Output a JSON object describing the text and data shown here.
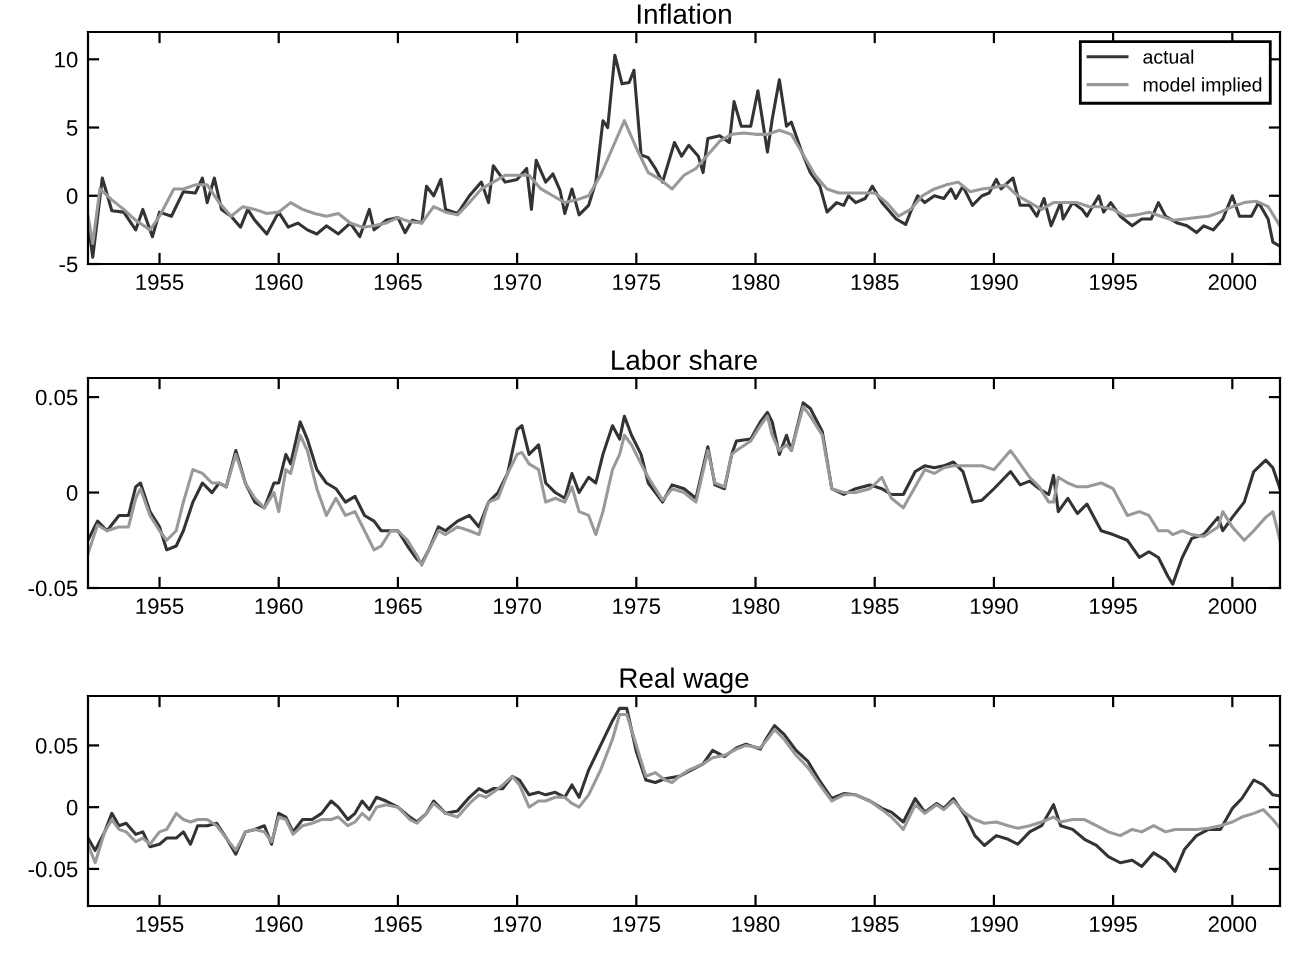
{
  "chart_data": [
    {
      "type": "line",
      "title": "Inflation",
      "xlim": [
        1952,
        2002
      ],
      "xticks": [
        1955,
        1960,
        1965,
        1970,
        1975,
        1980,
        1985,
        1990,
        1995,
        2000
      ],
      "ylim": [
        -5,
        12
      ],
      "yticks": [
        -5,
        0,
        5,
        10
      ],
      "legend": "top right",
      "grid": false,
      "series": [
        {
          "name": "actual",
          "color": "#333333",
          "x": [
            1952.0,
            1952.2,
            1952.6,
            1953.0,
            1953.5,
            1954.0,
            1954.3,
            1954.7,
            1955.0,
            1955.5,
            1956.0,
            1956.5,
            1956.8,
            1957.0,
            1957.3,
            1957.6,
            1958.0,
            1958.4,
            1958.7,
            1959.0,
            1959.5,
            1960.0,
            1960.4,
            1960.8,
            1961.2,
            1961.6,
            1962.0,
            1962.5,
            1963.0,
            1963.4,
            1963.8,
            1964.0,
            1964.5,
            1965.0,
            1965.3,
            1965.6,
            1966.0,
            1966.2,
            1966.5,
            1966.8,
            1967.0,
            1967.5,
            1968.0,
            1968.5,
            1968.8,
            1969.0,
            1969.5,
            1970.0,
            1970.4,
            1970.6,
            1970.8,
            1971.2,
            1971.5,
            1971.8,
            1972.0,
            1972.3,
            1972.6,
            1973.0,
            1973.3,
            1973.6,
            1973.8,
            1974.1,
            1974.4,
            1974.7,
            1974.9,
            1975.2,
            1975.5,
            1975.8,
            1976.1,
            1976.6,
            1976.9,
            1977.2,
            1977.6,
            1977.8,
            1978.0,
            1978.5,
            1978.9,
            1979.1,
            1979.4,
            1979.8,
            1980.1,
            1980.5,
            1980.7,
            1981.0,
            1981.3,
            1981.5,
            1981.9,
            1982.3,
            1982.7,
            1983.0,
            1983.4,
            1983.7,
            1983.9,
            1984.2,
            1984.6,
            1984.9,
            1985.3,
            1985.9,
            1986.3,
            1986.5,
            1986.8,
            1987.1,
            1987.5,
            1987.9,
            1988.2,
            1988.4,
            1988.7,
            1989.1,
            1989.5,
            1989.8,
            1990.1,
            1990.3,
            1990.6,
            1990.8,
            1991.1,
            1991.5,
            1991.8,
            1992.1,
            1992.4,
            1992.8,
            1992.9,
            1993.3,
            1993.7,
            1993.9,
            1994.4,
            1994.6,
            1994.9,
            1995.3,
            1995.8,
            1996.2,
            1996.6,
            1996.9,
            1997.2,
            1997.7,
            1998.1,
            1998.5,
            1998.8,
            1999.2,
            1999.6,
            2000.0,
            2000.3,
            2000.8,
            2001.1,
            2001.5,
            2001.7,
            2002.0
          ],
          "values": [
            -2,
            -4.5,
            1.3,
            -1.1,
            -1.2,
            -2.5,
            -1,
            -3,
            -1.2,
            -1.5,
            0.3,
            0.2,
            1.3,
            -0.5,
            1.3,
            -1,
            -1.5,
            -2.3,
            -1,
            -1.8,
            -2.8,
            -1.2,
            -2.3,
            -2,
            -2.5,
            -2.8,
            -2.2,
            -2.8,
            -2,
            -3,
            -1,
            -2.5,
            -1.8,
            -1.6,
            -2.7,
            -1.8,
            -2,
            0.7,
            0,
            1.2,
            -1,
            -1.3,
            0,
            1,
            -0.5,
            2.2,
            1,
            1.2,
            2,
            -1,
            2.6,
            1,
            1.6,
            0.4,
            -1.3,
            0.5,
            -1.4,
            -0.7,
            1,
            5.5,
            5,
            10.3,
            8.2,
            8.3,
            9.2,
            3,
            2.8,
            2,
            1,
            3.9,
            2.9,
            3.7,
            2.9,
            1.7,
            4.2,
            4.4,
            3.9,
            6.9,
            5.1,
            5.1,
            7.7,
            3.2,
            5.6,
            8.5,
            5.1,
            5.4,
            3.4,
            1.7,
            0.7,
            -1.2,
            -0.5,
            -0.7,
            0,
            -0.5,
            -0.2,
            0.7,
            -0.5,
            -1.7,
            -2.1,
            -1.2,
            0,
            -0.5,
            0,
            -0.2,
            0.5,
            -0.2,
            0.7,
            -0.7,
            0,
            0.2,
            1.2,
            0.5,
            1,
            1.3,
            -0.7,
            -0.7,
            -1.5,
            -0.2,
            -2.2,
            -0.5,
            -1.7,
            -0.5,
            -1,
            -1.5,
            0,
            -1.2,
            -0.5,
            -1.5,
            -2.2,
            -1.7,
            -1.7,
            -0.5,
            -1.5,
            -2,
            -2.2,
            -2.7,
            -2.2,
            -2.5,
            -1.7,
            0,
            -1.5,
            -1.5,
            -0.5,
            -1.7,
            -3.4,
            -3.7
          ]
        },
        {
          "name": "model implied",
          "color": "#999999",
          "x": [
            1952.0,
            1952.2,
            1952.5,
            1953.0,
            1953.5,
            1954.0,
            1954.6,
            1955.0,
            1955.6,
            1956.0,
            1956.5,
            1957.0,
            1957.5,
            1958.0,
            1958.5,
            1959.0,
            1959.5,
            1960.0,
            1960.5,
            1961.0,
            1961.5,
            1962.0,
            1962.5,
            1963.0,
            1963.5,
            1964.0,
            1964.5,
            1965.0,
            1965.5,
            1966.0,
            1966.5,
            1967.0,
            1967.5,
            1968.0,
            1968.5,
            1969.0,
            1969.5,
            1970.0,
            1970.5,
            1971.0,
            1971.5,
            1972.0,
            1972.5,
            1973.0,
            1973.5,
            1974.0,
            1974.5,
            1975.0,
            1975.5,
            1976.0,
            1976.5,
            1977.0,
            1977.5,
            1978.0,
            1978.5,
            1979.0,
            1979.5,
            1980.0,
            1980.5,
            1981.0,
            1981.5,
            1982.0,
            1982.5,
            1983.0,
            1983.5,
            1984.0,
            1984.5,
            1985.0,
            1985.5,
            1986.0,
            1986.5,
            1987.0,
            1987.5,
            1988.0,
            1988.5,
            1989.0,
            1989.5,
            1990.0,
            1990.5,
            1991.0,
            1991.5,
            1992.0,
            1992.5,
            1993.0,
            1993.5,
            1994.0,
            1994.5,
            1995.0,
            1995.5,
            1996.0,
            1996.5,
            1997.0,
            1997.5,
            1998.0,
            1998.5,
            1999.0,
            1999.5,
            2000.0,
            2000.5,
            2001.0,
            2001.5,
            2002.0
          ],
          "values": [
            -1.5,
            -3.5,
            0.5,
            -0.3,
            -1,
            -1.8,
            -2.5,
            -1.5,
            0.5,
            0.5,
            0.8,
            0.8,
            -0.5,
            -1.5,
            -0.8,
            -1,
            -1.3,
            -1.2,
            -0.5,
            -1,
            -1.3,
            -1.5,
            -1.3,
            -2,
            -2.3,
            -2.2,
            -2,
            -1.6,
            -1.9,
            -2,
            -0.8,
            -1.2,
            -1.4,
            -0.5,
            0.5,
            1,
            1.5,
            1.5,
            1.5,
            0.5,
            0,
            -0.5,
            -0.3,
            0,
            1.5,
            3.5,
            5.5,
            3.5,
            1.7,
            1.2,
            0.5,
            1.5,
            2,
            3,
            4,
            4.5,
            4.6,
            4.5,
            4.5,
            4.8,
            4.5,
            3,
            1.5,
            0.5,
            0.2,
            0.2,
            0.2,
            0.2,
            -0.5,
            -1.5,
            -1,
            0,
            0.5,
            0.8,
            1,
            0.3,
            0.5,
            0.6,
            0.8,
            0,
            -0.5,
            -1,
            -0.5,
            -0.5,
            -0.5,
            -0.8,
            -0.8,
            -1,
            -1.5,
            -1.4,
            -1.2,
            -1.5,
            -1.8,
            -1.7,
            -1.6,
            -1.5,
            -1.2,
            -0.8,
            -0.5,
            -0.4,
            -0.8,
            -2.2
          ]
        }
      ]
    },
    {
      "type": "line",
      "title": "Labor share",
      "xlim": [
        1952,
        2002
      ],
      "xticks": [
        1955,
        1960,
        1965,
        1970,
        1975,
        1980,
        1985,
        1990,
        1995,
        2000
      ],
      "ylim": [
        -0.05,
        0.06
      ],
      "yticks": [
        -0.05,
        0,
        0.05
      ],
      "grid": false,
      "series": [
        {
          "color": "#333333",
          "x": [
            1952.0,
            1952.4,
            1952.8,
            1953.3,
            1953.7,
            1954.0,
            1954.2,
            1954.6,
            1955.0,
            1955.3,
            1955.7,
            1956.0,
            1956.4,
            1956.8,
            1957.2,
            1957.5,
            1957.8,
            1958.2,
            1958.6,
            1959.0,
            1959.4,
            1959.8,
            1960.0,
            1960.3,
            1960.5,
            1960.9,
            1961.2,
            1961.6,
            1962.0,
            1962.4,
            1962.8,
            1963.2,
            1963.6,
            1964.0,
            1964.3,
            1964.7,
            1965.0,
            1965.4,
            1965.8,
            1966.0,
            1966.3,
            1966.7,
            1967.0,
            1967.5,
            1968.0,
            1968.4,
            1968.8,
            1969.2,
            1969.6,
            1970.0,
            1970.2,
            1970.5,
            1970.9,
            1971.2,
            1971.6,
            1972.0,
            1972.3,
            1972.6,
            1973.0,
            1973.3,
            1973.6,
            1974.0,
            1974.3,
            1974.5,
            1974.8,
            1975.2,
            1975.5,
            1976.1,
            1976.5,
            1977.0,
            1977.5,
            1978.0,
            1978.3,
            1978.7,
            1979.0,
            1979.2,
            1979.8,
            1980.2,
            1980.5,
            1980.7,
            1981.0,
            1981.3,
            1981.5,
            1982.0,
            1982.3,
            1982.8,
            1983.2,
            1983.7,
            1984.2,
            1984.8,
            1985.3,
            1985.7,
            1986.2,
            1986.7,
            1987.1,
            1987.5,
            1987.9,
            1988.3,
            1988.7,
            1989.1,
            1989.5,
            1990.0,
            1990.7,
            1991.1,
            1991.5,
            1991.9,
            1992.3,
            1992.5,
            1992.7,
            1993.1,
            1993.5,
            1993.9,
            1994.5,
            1995.0,
            1995.6,
            1996.1,
            1996.5,
            1996.9,
            1997.3,
            1997.5,
            1997.9,
            1998.3,
            1998.8,
            1999.4,
            1999.6,
            2000.0,
            2000.5,
            2000.9,
            2001.4,
            2001.7,
            2002.0
          ],
          "values": [
            -0.025,
            -0.015,
            -0.02,
            -0.012,
            -0.012,
            0.003,
            0.005,
            -0.01,
            -0.018,
            -0.03,
            -0.028,
            -0.02,
            -0.005,
            0.005,
            0,
            0.005,
            0.003,
            0.022,
            0.005,
            -0.005,
            -0.008,
            0.005,
            0.005,
            0.02,
            0.015,
            0.037,
            0.028,
            0.012,
            0.005,
            0.002,
            -0.005,
            -0.002,
            -0.012,
            -0.015,
            -0.02,
            -0.02,
            -0.02,
            -0.028,
            -0.035,
            -0.037,
            -0.03,
            -0.018,
            -0.02,
            -0.015,
            -0.012,
            -0.018,
            -0.005,
            0,
            0.01,
            0.033,
            0.035,
            0.02,
            0.025,
            0.005,
            0,
            -0.003,
            0.01,
            0,
            0.008,
            0.005,
            0.02,
            0.035,
            0.028,
            0.04,
            0.03,
            0.02,
            0.005,
            -0.005,
            0.004,
            0.002,
            -0.003,
            0.024,
            0.004,
            0.002,
            0.02,
            0.027,
            0.028,
            0.037,
            0.042,
            0.037,
            0.02,
            0.03,
            0.022,
            0.047,
            0.044,
            0.032,
            0.002,
            -0.001,
            0.002,
            0.004,
            0.002,
            -0.001,
            -0.001,
            0.011,
            0.014,
            0.013,
            0.014,
            0.016,
            0.011,
            -0.005,
            -0.004,
            0.002,
            0.011,
            0.004,
            0.006,
            0.002,
            -0.001,
            0.009,
            -0.01,
            -0.003,
            -0.011,
            -0.006,
            -0.02,
            -0.022,
            -0.025,
            -0.034,
            -0.031,
            -0.034,
            -0.044,
            -0.048,
            -0.034,
            -0.024,
            -0.022,
            -0.013,
            -0.02,
            -0.013,
            -0.005,
            0.011,
            0.017,
            0.013,
            0.002
          ]
        },
        {
          "color": "#999999",
          "x": [
            1952.0,
            1952.4,
            1952.8,
            1953.3,
            1953.7,
            1954.0,
            1954.2,
            1954.6,
            1955.0,
            1955.3,
            1955.7,
            1956.0,
            1956.4,
            1956.8,
            1957.2,
            1957.5,
            1957.8,
            1958.2,
            1958.6,
            1959.0,
            1959.4,
            1959.8,
            1960.0,
            1960.3,
            1960.5,
            1960.9,
            1961.2,
            1961.6,
            1962.0,
            1962.4,
            1962.8,
            1963.2,
            1963.6,
            1964.0,
            1964.3,
            1964.7,
            1965.0,
            1965.4,
            1965.8,
            1966.0,
            1966.3,
            1966.7,
            1967.0,
            1967.5,
            1968.0,
            1968.4,
            1968.8,
            1969.2,
            1969.6,
            1970.0,
            1970.2,
            1970.5,
            1970.9,
            1971.2,
            1971.6,
            1972.0,
            1972.3,
            1972.6,
            1973.0,
            1973.3,
            1973.6,
            1974.0,
            1974.3,
            1974.5,
            1974.8,
            1975.2,
            1975.5,
            1976.1,
            1976.5,
            1977.0,
            1977.5,
            1978.0,
            1978.3,
            1978.7,
            1979.0,
            1979.2,
            1979.8,
            1980.2,
            1980.5,
            1980.7,
            1981.0,
            1981.3,
            1981.5,
            1982.0,
            1982.3,
            1982.8,
            1983.2,
            1983.7,
            1984.2,
            1984.8,
            1985.3,
            1985.7,
            1986.2,
            1986.7,
            1987.1,
            1987.5,
            1987.9,
            1988.3,
            1988.7,
            1989.1,
            1989.5,
            1990.0,
            1990.7,
            1991.1,
            1991.5,
            1991.9,
            1992.3,
            1992.5,
            1992.7,
            1993.1,
            1993.5,
            1993.9,
            1994.5,
            1995.0,
            1995.6,
            1996.1,
            1996.5,
            1996.9,
            1997.3,
            1997.5,
            1997.9,
            1998.3,
            1998.8,
            1999.4,
            1999.6,
            2000.0,
            2000.5,
            2000.9,
            2001.4,
            2001.7,
            2002.0
          ],
          "values": [
            -0.032,
            -0.017,
            -0.02,
            -0.018,
            -0.018,
            -0.003,
            0.002,
            -0.012,
            -0.02,
            -0.025,
            -0.02,
            -0.005,
            0.012,
            0.01,
            0.005,
            0.005,
            0.003,
            0.02,
            0.005,
            -0.003,
            -0.008,
            0,
            -0.01,
            0.012,
            0.01,
            0.03,
            0.022,
            0.002,
            -0.012,
            -0.003,
            -0.012,
            -0.01,
            -0.02,
            -0.03,
            -0.028,
            -0.02,
            -0.02,
            -0.025,
            -0.033,
            -0.038,
            -0.03,
            -0.02,
            -0.022,
            -0.018,
            -0.02,
            -0.022,
            -0.005,
            -0.003,
            0.01,
            0.02,
            0.021,
            0.015,
            0.012,
            -0.005,
            -0.003,
            -0.005,
            0.003,
            -0.01,
            -0.012,
            -0.022,
            -0.01,
            0.012,
            0.02,
            0.03,
            0.025,
            0.015,
            0.008,
            -0.004,
            0.002,
            0,
            -0.005,
            0.022,
            0.005,
            0.003,
            0.02,
            0.022,
            0.027,
            0.035,
            0.04,
            0.03,
            0.022,
            0.025,
            0.022,
            0.045,
            0.04,
            0.03,
            0.002,
            0,
            0,
            0.002,
            0.008,
            -0.003,
            -0.008,
            0.003,
            0.012,
            0.01,
            0.013,
            0.014,
            0.014,
            0.014,
            0.014,
            0.012,
            0.022,
            0.015,
            0.008,
            0.003,
            -0.005,
            -0.005,
            0.008,
            0.005,
            0.003,
            0.003,
            0.005,
            0.002,
            -0.012,
            -0.01,
            -0.012,
            -0.02,
            -0.02,
            -0.022,
            -0.02,
            -0.022,
            -0.023,
            -0.018,
            -0.01,
            -0.018,
            -0.025,
            -0.02,
            -0.013,
            -0.01,
            -0.025
          ]
        }
      ]
    },
    {
      "type": "line",
      "title": "Real wage",
      "xlim": [
        1952,
        2002
      ],
      "xticks": [
        1955,
        1960,
        1965,
        1970,
        1975,
        1980,
        1985,
        1990,
        1995,
        2000
      ],
      "ylim": [
        -0.08,
        0.09
      ],
      "yticks": [
        -0.05,
        0,
        0.05
      ],
      "grid": false,
      "series": [
        {
          "color": "#333333",
          "x": [
            1952.0,
            1952.3,
            1952.7,
            1953.0,
            1953.3,
            1953.6,
            1954.0,
            1954.3,
            1954.6,
            1955.0,
            1955.3,
            1955.7,
            1956.0,
            1956.3,
            1956.6,
            1957.0,
            1957.4,
            1957.8,
            1958.2,
            1958.6,
            1959.0,
            1959.4,
            1959.7,
            1960.0,
            1960.3,
            1960.6,
            1961.0,
            1961.4,
            1961.8,
            1962.2,
            1962.5,
            1962.9,
            1963.2,
            1963.5,
            1963.8,
            1964.1,
            1964.5,
            1965.0,
            1965.5,
            1965.8,
            1966.2,
            1966.5,
            1967.0,
            1967.5,
            1968.0,
            1968.4,
            1968.7,
            1969.0,
            1969.4,
            1969.8,
            1970.1,
            1970.5,
            1970.9,
            1971.2,
            1971.6,
            1972.0,
            1972.3,
            1972.6,
            1973.0,
            1973.5,
            1974.0,
            1974.3,
            1974.6,
            1975.0,
            1975.4,
            1975.8,
            1976.2,
            1976.5,
            1976.8,
            1977.2,
            1977.8,
            1978.2,
            1978.7,
            1979.2,
            1979.6,
            1980.2,
            1980.5,
            1980.8,
            1981.2,
            1981.7,
            1982.2,
            1982.7,
            1983.2,
            1983.7,
            1984.2,
            1984.8,
            1985.3,
            1985.7,
            1986.2,
            1986.7,
            1987.1,
            1987.6,
            1987.9,
            1988.3,
            1988.8,
            1989.2,
            1989.6,
            1990.1,
            1990.6,
            1991.0,
            1991.5,
            1992.0,
            1992.5,
            1992.8,
            1993.3,
            1993.8,
            1994.3,
            1994.8,
            1995.3,
            1995.8,
            1996.2,
            1996.7,
            1997.2,
            1997.6,
            1998.0,
            1998.5,
            1999.0,
            1999.5,
            2000.0,
            2000.4,
            2000.9,
            2001.3,
            2001.7,
            2002.0
          ],
          "values": [
            -0.025,
            -0.035,
            -0.02,
            -0.005,
            -0.015,
            -0.013,
            -0.022,
            -0.02,
            -0.032,
            -0.03,
            -0.025,
            -0.025,
            -0.02,
            -0.03,
            -0.015,
            -0.015,
            -0.013,
            -0.025,
            -0.038,
            -0.02,
            -0.018,
            -0.015,
            -0.03,
            -0.005,
            -0.008,
            -0.02,
            -0.01,
            -0.01,
            -0.005,
            0.005,
            0,
            -0.01,
            -0.005,
            0.005,
            -0.002,
            0.008,
            0.005,
            0,
            -0.008,
            -0.012,
            -0.005,
            0.005,
            -0.005,
            -0.003,
            0.008,
            0.015,
            0.012,
            0.015,
            0.015,
            0.025,
            0.022,
            0.01,
            0.012,
            0.01,
            0.012,
            0.008,
            0.018,
            0.008,
            0.03,
            0.05,
            0.07,
            0.08,
            0.08,
            0.045,
            0.022,
            0.02,
            0.023,
            0.024,
            0.025,
            0.029,
            0.035,
            0.046,
            0.041,
            0.048,
            0.051,
            0.047,
            0.057,
            0.066,
            0.059,
            0.046,
            0.037,
            0.021,
            0.007,
            0.011,
            0.01,
            0.005,
            -0.001,
            -0.004,
            -0.012,
            0.007,
            -0.004,
            0.003,
            -0.001,
            0.007,
            -0.007,
            -0.023,
            -0.031,
            -0.023,
            -0.026,
            -0.03,
            -0.02,
            -0.015,
            0.002,
            -0.015,
            -0.018,
            -0.026,
            -0.031,
            -0.04,
            -0.045,
            -0.043,
            -0.048,
            -0.037,
            -0.043,
            -0.052,
            -0.034,
            -0.023,
            -0.018,
            -0.018,
            -0.001,
            0.007,
            0.022,
            0.018,
            0.01,
            0.009
          ]
        },
        {
          "color": "#999999",
          "x": [
            1952.0,
            1952.3,
            1952.7,
            1953.0,
            1953.3,
            1953.6,
            1954.0,
            1954.3,
            1954.6,
            1955.0,
            1955.3,
            1955.7,
            1956.0,
            1956.3,
            1956.6,
            1957.0,
            1957.4,
            1957.8,
            1958.2,
            1958.6,
            1959.0,
            1959.4,
            1959.7,
            1960.0,
            1960.3,
            1960.6,
            1961.0,
            1961.4,
            1961.8,
            1962.2,
            1962.5,
            1962.9,
            1963.2,
            1963.5,
            1963.8,
            1964.1,
            1964.5,
            1965.0,
            1965.5,
            1965.8,
            1966.2,
            1966.5,
            1967.0,
            1967.5,
            1968.0,
            1968.4,
            1968.7,
            1969.0,
            1969.4,
            1969.8,
            1970.1,
            1970.5,
            1970.9,
            1971.2,
            1971.6,
            1972.0,
            1972.3,
            1972.6,
            1973.0,
            1973.5,
            1974.0,
            1974.3,
            1974.6,
            1975.0,
            1975.4,
            1975.8,
            1976.2,
            1976.5,
            1976.8,
            1977.2,
            1977.8,
            1978.2,
            1978.7,
            1979.2,
            1979.6,
            1980.2,
            1980.5,
            1980.8,
            1981.2,
            1981.7,
            1982.2,
            1982.7,
            1983.2,
            1983.7,
            1984.2,
            1984.8,
            1985.3,
            1985.7,
            1986.2,
            1986.7,
            1987.1,
            1987.6,
            1987.9,
            1988.3,
            1988.8,
            1989.2,
            1989.6,
            1990.1,
            1990.6,
            1991.0,
            1991.5,
            1992.0,
            1992.5,
            1992.8,
            1993.3,
            1993.8,
            1994.3,
            1994.8,
            1995.3,
            1995.8,
            1996.2,
            1996.7,
            1997.2,
            1997.6,
            1998.0,
            1998.5,
            1999.0,
            1999.5,
            2000.0,
            2000.4,
            2000.9,
            2001.3,
            2001.7,
            2002.0
          ],
          "values": [
            -0.03,
            -0.045,
            -0.02,
            -0.01,
            -0.018,
            -0.02,
            -0.028,
            -0.025,
            -0.03,
            -0.02,
            -0.018,
            -0.005,
            -0.01,
            -0.012,
            -0.01,
            -0.01,
            -0.015,
            -0.025,
            -0.035,
            -0.02,
            -0.018,
            -0.02,
            -0.028,
            -0.008,
            -0.01,
            -0.022,
            -0.015,
            -0.013,
            -0.01,
            -0.01,
            -0.008,
            -0.015,
            -0.012,
            -0.005,
            -0.01,
            0,
            0.002,
            0,
            -0.01,
            -0.013,
            -0.005,
            0.003,
            -0.005,
            -0.008,
            0.003,
            0.01,
            0.008,
            0.012,
            0.018,
            0.025,
            0.018,
            0,
            0.005,
            0.005,
            0.008,
            0.008,
            0.003,
            0,
            0.01,
            0.03,
            0.055,
            0.075,
            0.075,
            0.05,
            0.025,
            0.028,
            0.022,
            0.02,
            0.025,
            0.03,
            0.035,
            0.04,
            0.042,
            0.047,
            0.05,
            0.048,
            0.055,
            0.063,
            0.055,
            0.042,
            0.032,
            0.018,
            0.005,
            0.01,
            0.01,
            0.005,
            -0.002,
            -0.008,
            -0.018,
            0.002,
            -0.005,
            0.002,
            -0.002,
            0.005,
            -0.005,
            -0.01,
            -0.013,
            -0.012,
            -0.015,
            -0.017,
            -0.015,
            -0.012,
            -0.008,
            -0.012,
            -0.01,
            -0.01,
            -0.015,
            -0.02,
            -0.023,
            -0.018,
            -0.02,
            -0.015,
            -0.02,
            -0.018,
            -0.018,
            -0.018,
            -0.017,
            -0.015,
            -0.012,
            -0.008,
            -0.005,
            -0.002,
            -0.01,
            -0.017
          ]
        }
      ]
    }
  ]
}
